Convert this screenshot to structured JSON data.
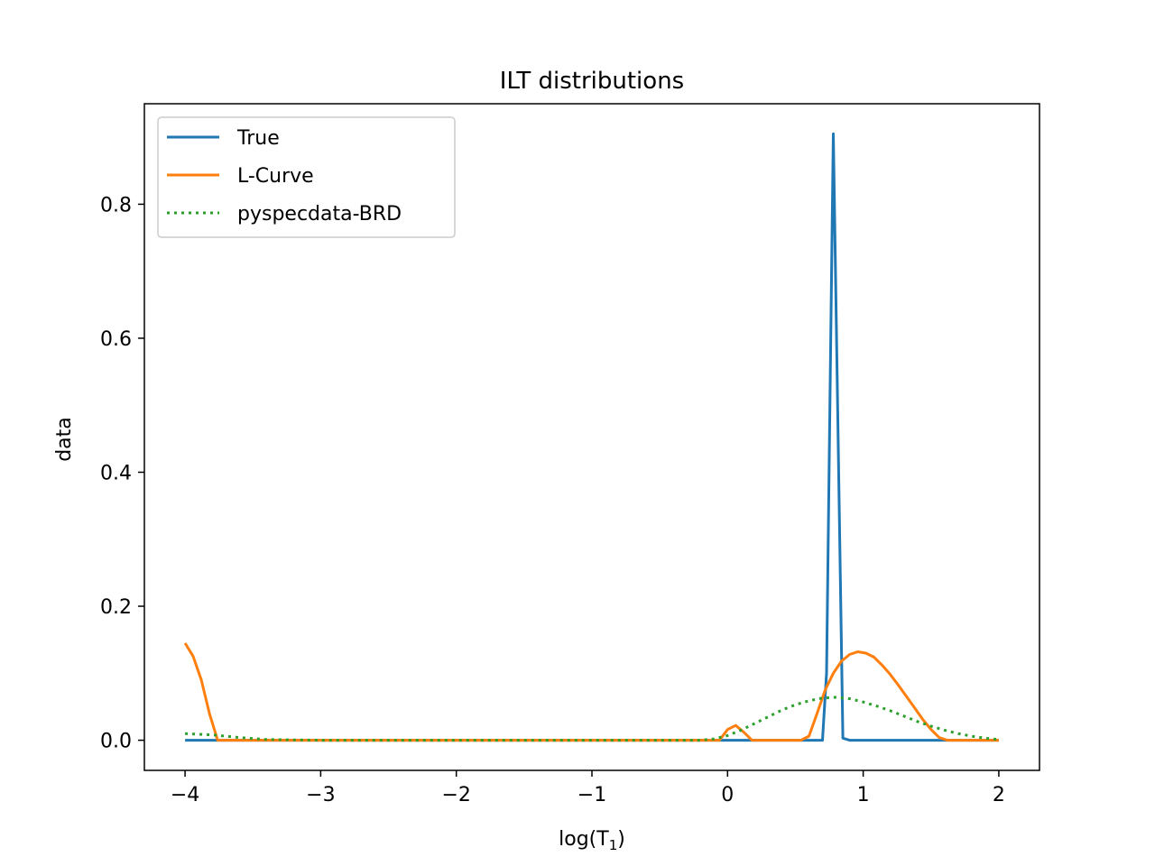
{
  "chart_data": {
    "type": "line",
    "title": "ILT distributions",
    "xlabel": "log(T",
    "xlabel_sub": "1",
    "xlabel_close": ")",
    "ylabel": "data",
    "xlim": [
      -4.3,
      2.3
    ],
    "ylim": [
      -0.045,
      0.95
    ],
    "xticks": [
      -4,
      -3,
      -2,
      -1,
      0,
      1,
      2
    ],
    "xtick_labels": [
      "−4",
      "−3",
      "−2",
      "−1",
      "0",
      "1",
      "2"
    ],
    "yticks": [
      0.0,
      0.2,
      0.4,
      0.6,
      0.8
    ],
    "ytick_labels": [
      "0.0",
      "0.2",
      "0.4",
      "0.6",
      "0.8"
    ],
    "grid": false,
    "legend_position": "top-left",
    "series": [
      {
        "name": "True",
        "color": "#1f77b4",
        "style": "solid",
        "x": [
          -4.0,
          0.66,
          0.7,
          0.73,
          0.78,
          0.85,
          0.9,
          2.0
        ],
        "y": [
          0.0,
          0.0,
          0.0,
          0.1,
          0.905,
          0.003,
          0.0,
          0.0
        ]
      },
      {
        "name": "L-Curve",
        "color": "#ff7f0e",
        "style": "solid",
        "x": [
          -4.0,
          -3.94,
          -3.88,
          -3.82,
          -3.76,
          -3.7,
          -0.06,
          0.0,
          0.06,
          0.12,
          0.18,
          0.24,
          0.3,
          0.36,
          0.42,
          0.48,
          0.54,
          0.6,
          0.66,
          0.72,
          0.78,
          0.84,
          0.9,
          0.96,
          1.02,
          1.08,
          1.14,
          1.2,
          1.26,
          1.32,
          1.38,
          1.44,
          1.5,
          1.56,
          1.62,
          1.68,
          2.0
        ],
        "y": [
          0.145,
          0.125,
          0.09,
          0.04,
          0.0,
          0.0,
          0.0,
          0.016,
          0.022,
          0.012,
          0.0,
          0.0,
          0.0,
          0.0,
          0.0,
          0.0,
          0.0,
          0.006,
          0.04,
          0.075,
          0.1,
          0.118,
          0.128,
          0.132,
          0.13,
          0.124,
          0.112,
          0.098,
          0.082,
          0.065,
          0.048,
          0.031,
          0.016,
          0.004,
          0.0,
          0.0,
          0.0
        ]
      },
      {
        "name": "pyspecdata-BRD",
        "color": "#2ca02c",
        "style": "dotted",
        "x": [
          -4.0,
          -3.8,
          -3.6,
          -3.4,
          -3.0,
          -2.0,
          -1.0,
          -0.2,
          -0.1,
          0.0,
          0.1,
          0.2,
          0.3,
          0.4,
          0.5,
          0.6,
          0.7,
          0.8,
          0.9,
          1.0,
          1.1,
          1.2,
          1.3,
          1.4,
          1.5,
          1.6,
          1.7,
          1.8,
          1.9,
          2.0
        ],
        "y": [
          0.01,
          0.008,
          0.004,
          0.001,
          0.0,
          0.0,
          0.0,
          0.0,
          0.002,
          0.007,
          0.015,
          0.025,
          0.035,
          0.045,
          0.053,
          0.059,
          0.063,
          0.064,
          0.062,
          0.057,
          0.051,
          0.044,
          0.036,
          0.028,
          0.021,
          0.015,
          0.01,
          0.006,
          0.003,
          0.001
        ]
      }
    ]
  }
}
